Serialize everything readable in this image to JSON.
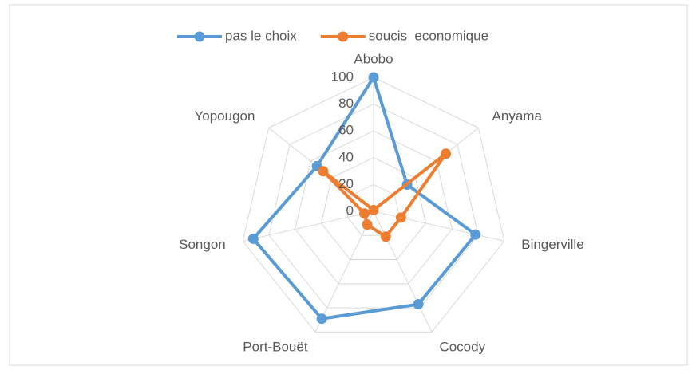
{
  "chart_data": {
    "type": "radar",
    "categories": [
      "Abobo",
      "Anyama",
      "Bingerville",
      "Cocody",
      "Port-Bouët",
      "Songon",
      "Yopougon"
    ],
    "series": [
      {
        "name": "pas le choix",
        "color": "#5b9bd5",
        "values": [
          100,
          32,
          78,
          77,
          89,
          92,
          54
        ]
      },
      {
        "name": "soucis  economique",
        "color": "#ed7d31",
        "values": [
          1,
          69,
          21,
          21,
          11,
          7,
          48
        ]
      }
    ],
    "ylim": [
      0,
      100
    ],
    "yticks": [
      0,
      20,
      40,
      60,
      80,
      100
    ],
    "grid": true,
    "legend": "top"
  }
}
